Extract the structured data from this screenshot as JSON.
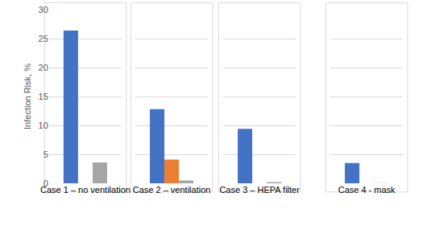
{
  "chart_data": {
    "type": "bar",
    "ylabel": "Infection Risk, %",
    "categories": [
      "Case 1 – no ventilation",
      "Case 2 – ventilation",
      "Case 3 – HEPA filter",
      "Case 4 - mask"
    ],
    "series": [
      {
        "color": "#4472c4",
        "values": [
          26.4,
          12.8,
          9.4,
          3.5
        ]
      },
      {
        "color": "#ed7d31",
        "values": [
          null,
          4.1,
          null,
          null
        ]
      },
      {
        "color": "#a5a5a5",
        "values": [
          3.6,
          0.5,
          0.2,
          0.05
        ]
      }
    ],
    "ylim": [
      0,
      30
    ],
    "yticks": [
      0,
      5,
      10,
      15,
      20,
      25,
      30
    ],
    "grid": true
  }
}
